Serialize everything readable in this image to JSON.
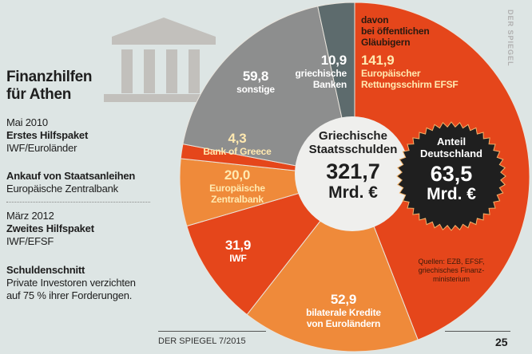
{
  "title": [
    "Finanzhilfen",
    "für Athen"
  ],
  "sidebar": [
    {
      "date": "Mai 2010",
      "heading": "Erstes Hilfspaket",
      "text": "IWF/Euroländer"
    },
    {
      "heading": "Ankauf von Staatsanleihen",
      "text": "Europäische Zentralbank"
    },
    {
      "date": "März 2012",
      "heading": "Zweites Hilfspaket",
      "text": "IWF/EFSF"
    },
    {
      "heading": "Schuldenschnitt",
      "text": "Private Investoren verzichten",
      "text2": "auf 75 % ihrer Forderungen."
    }
  ],
  "chart_data": {
    "type": "pie",
    "unit": "Mrd. €",
    "total_label": [
      "Griechische",
      "Staatsschulden"
    ],
    "total_value": "321,7",
    "germany_label": [
      "Anteil",
      "Deutschland"
    ],
    "germany_value": "63,5",
    "public_note": [
      "davon",
      "bei öffentlichen",
      "Gläubigern"
    ],
    "slices": [
      {
        "value": 141.9,
        "display": "141,9",
        "label": [
          "Europäischer",
          "Rettungsschirm EFSF"
        ],
        "color": "#e5461b",
        "group": "public"
      },
      {
        "value": 52.9,
        "display": "52,9",
        "label": [
          "bilaterale Kredite",
          "von Euroländern"
        ],
        "color": "#ef8a3a",
        "group": "public"
      },
      {
        "value": 31.9,
        "display": "31,9",
        "label": [
          "IWF"
        ],
        "color": "#e5461b",
        "group": "public"
      },
      {
        "value": 20.0,
        "display": "20,0",
        "label": [
          "Europäische",
          "Zentralbank"
        ],
        "color": "#ef8a3a",
        "group": "public"
      },
      {
        "value": 4.3,
        "display": "4,3",
        "label": [
          "Bank of Greece"
        ],
        "color": "#e5461b",
        "group": "public"
      },
      {
        "value": 59.8,
        "display": "59,8",
        "label": [
          "sonstige"
        ],
        "color": "#8d8e8e",
        "group": "private"
      },
      {
        "value": 10.9,
        "display": "10,9",
        "label": [
          "griechische",
          "Banken"
        ],
        "color": "#5d6b6d",
        "group": "private"
      }
    ],
    "source": [
      "Quellen: EZB, EFSF,",
      "griechisches Finanz-",
      "ministerium"
    ]
  },
  "watermark": "DER SPIEGEL",
  "footer": {
    "issue": "DER SPIEGEL 7/2015",
    "page": "25"
  }
}
